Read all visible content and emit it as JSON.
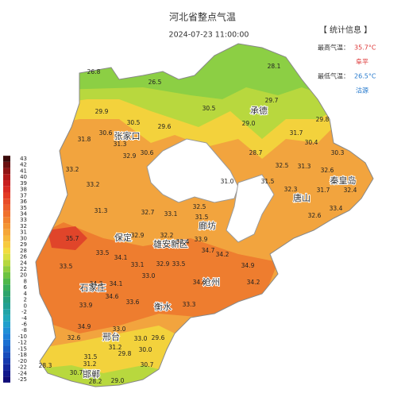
{
  "header": {
    "title": "河北省整点气温",
    "time": "2024-07-23 11:00:00"
  },
  "info": {
    "heading": "【 统计信息 】",
    "max_label": "最高气温：",
    "max_value": "35.7°C",
    "max_place": "阜平",
    "min_label": "最低气温：",
    "min_value": "26.5°C",
    "min_place": "沽源"
  },
  "legend": {
    "labels": [
      43,
      42,
      41,
      40,
      39,
      38,
      37,
      36,
      35,
      34,
      33,
      32,
      31,
      30,
      29,
      28,
      26,
      24,
      22,
      20,
      8,
      6,
      4,
      2,
      0,
      -2,
      -4,
      -6,
      -8,
      -10,
      -12,
      -15,
      -18,
      -20,
      -22,
      -24,
      -25
    ]
  },
  "cities": [
    "张家口",
    "承德",
    "秦皇岛",
    "唐山",
    "廊坊",
    "保定",
    "雄安新区",
    "石家庄",
    "沧州",
    "衡水",
    "邢台",
    "邯郸"
  ],
  "stations": [
    "26.8",
    "26.5",
    "28.1",
    "29.9",
    "30.5",
    "29.6",
    "30.5",
    "29.7",
    "29.0",
    "29.8",
    "30.6",
    "31.8",
    "31.3",
    "30.6",
    "32.9",
    "31.7",
    "30.4",
    "28.7",
    "30.3",
    "32.5",
    "31.3",
    "32.6",
    "33.2",
    "33.2",
    "31.0",
    "31.5",
    "32.3",
    "31.7",
    "32.4",
    "32.6",
    "33.4",
    "31.3",
    "32.7",
    "33.1",
    "32.5",
    "31.5",
    "35.7",
    "32.9",
    "33.5",
    "34.1",
    "32.2",
    "32.4",
    "33.9",
    "34.7",
    "34.2",
    "34.9",
    "33.5",
    "33.1",
    "32.9",
    "33.5",
    "34.3",
    "34.1",
    "33.0",
    "34.6",
    "34.2",
    "33.9",
    "34.6",
    "33.6",
    "33.3",
    "34.9",
    "32.6",
    "33.0",
    "33.0",
    "31.2",
    "30.0",
    "31.5",
    "31.2",
    "29.8",
    "29.6",
    "28.3",
    "28.2",
    "30.7",
    "29.0",
    "30.7"
  ]
}
